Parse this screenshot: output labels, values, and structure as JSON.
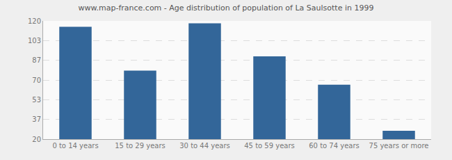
{
  "chart_data": {
    "type": "bar",
    "title": "www.map-france.com - Age distribution of population of La Saulsotte in 1999",
    "categories": [
      "0 to 14 years",
      "15 to 29 years",
      "30 to 44 years",
      "45 to 59 years",
      "60 to 74 years",
      "75 years or more"
    ],
    "values": [
      115,
      78,
      118,
      90,
      66,
      27
    ],
    "color": "#336699",
    "ylim": [
      20,
      120
    ],
    "yticks": [
      20,
      37,
      53,
      70,
      87,
      103,
      120
    ],
    "grid": true
  }
}
